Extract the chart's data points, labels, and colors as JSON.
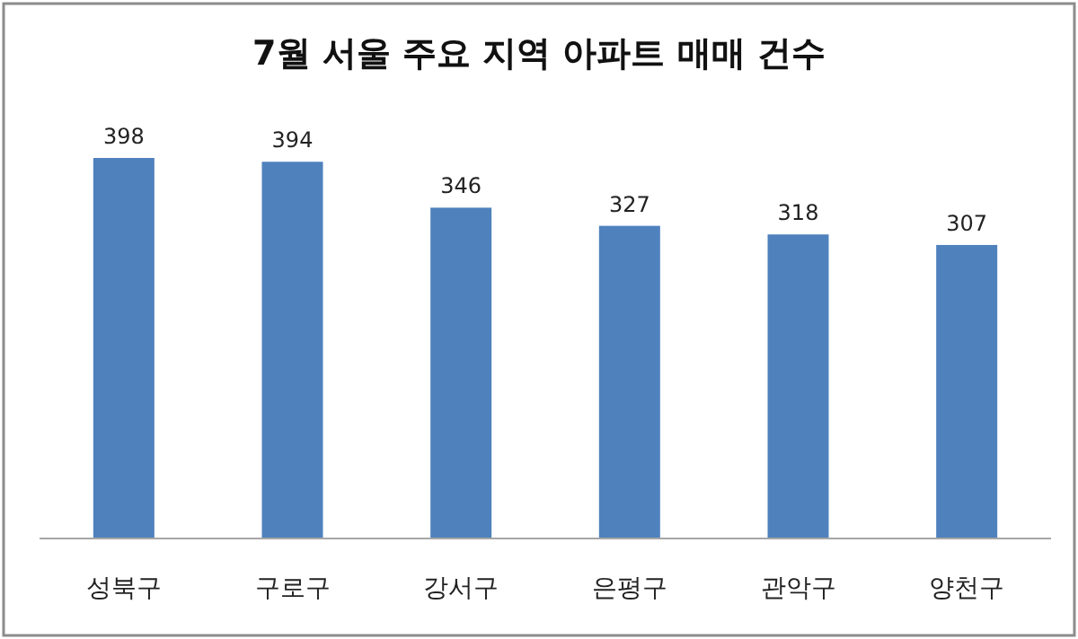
{
  "chart_data": {
    "type": "bar",
    "title": "7월 서울 주요 지역 아파트 매매 건수",
    "categories": [
      "성북구",
      "구로구",
      "강서구",
      "은평구",
      "관악구",
      "양천구"
    ],
    "values": [
      398,
      394,
      346,
      327,
      318,
      307
    ],
    "color": "#4f81bd",
    "data_labels": true,
    "tick_labels": "x"
  }
}
